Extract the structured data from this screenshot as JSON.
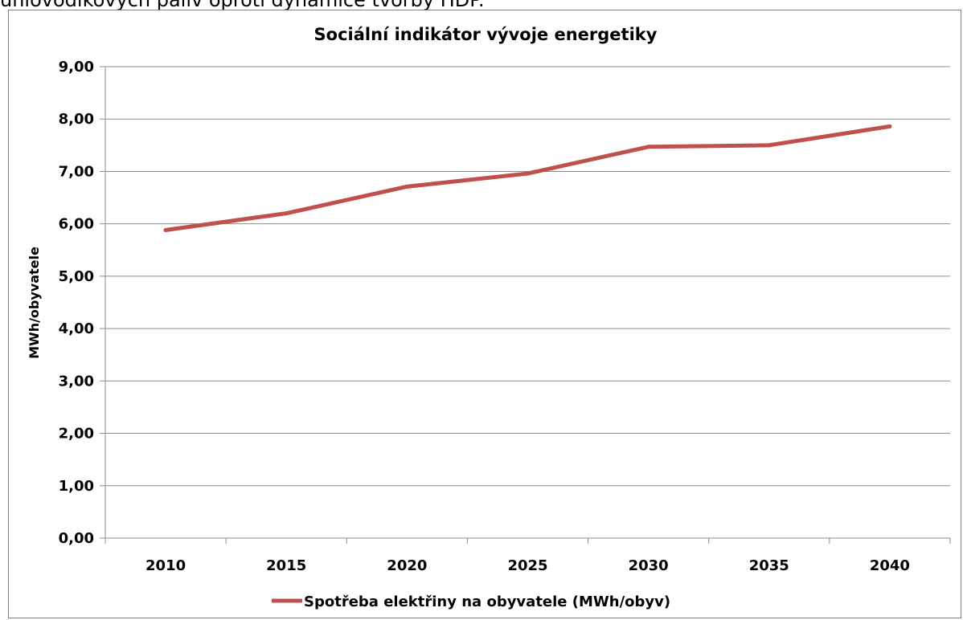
{
  "document": {
    "caption": "uhlovodíkových paliv oproti dynamice tvorby HDP."
  },
  "colors": {
    "series": "#c0504d",
    "grid": "#8c8c8c",
    "axis": "#8c8c8c"
  },
  "chart_data": {
    "type": "line",
    "title": "Sociální indikátor vývoje energetiky",
    "xlabel": "",
    "ylabel": "MWh/obyvatele",
    "categories": [
      "2010",
      "2015",
      "2020",
      "2025",
      "2030",
      "2035",
      "2040"
    ],
    "ylim": [
      0,
      9
    ],
    "yticks": [
      "0,00",
      "1,00",
      "2,00",
      "3,00",
      "4,00",
      "5,00",
      "6,00",
      "7,00",
      "8,00",
      "9,00"
    ],
    "grid": true,
    "legend_position": "bottom",
    "series": [
      {
        "name": "Spotřeba elektřiny na obyvatele (MWh/obyv)",
        "values": [
          5.88,
          6.2,
          6.71,
          6.96,
          7.47,
          7.5,
          7.86
        ]
      }
    ]
  }
}
